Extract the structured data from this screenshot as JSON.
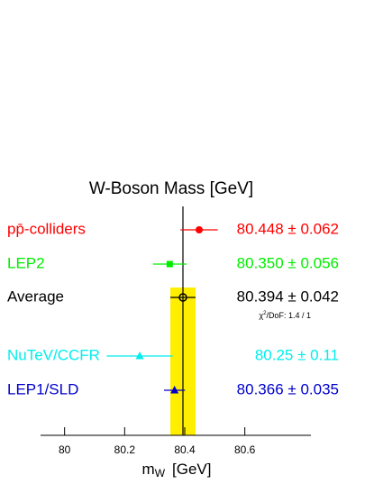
{
  "chart_data": {
    "type": "errorbar",
    "title": "W-Boson Mass  [GeV]",
    "xlabel": {
      "main": "m",
      "sub": "W",
      "unit": "[GeV]"
    },
    "xlim": [
      79.92,
      80.82
    ],
    "xticks": [
      80,
      80.2,
      80.4,
      80.6
    ],
    "band_color": "#ffee00",
    "average_index": 2,
    "series": [
      {
        "name": "pp̄-colliders",
        "color": "#ff0000",
        "marker": "circle",
        "value": 80.448,
        "error": 0.062,
        "value_label": "80.448 ± 0.062"
      },
      {
        "name": "LEP2",
        "color": "#00ee00",
        "marker": "square",
        "value": 80.35,
        "error": 0.056,
        "value_label": "80.350 ± 0.056"
      },
      {
        "name": "Average",
        "color": "#000000",
        "marker": "open-circle",
        "value": 80.394,
        "error": 0.042,
        "value_label": "80.394 ± 0.042"
      },
      {
        "name": "NuTeV/CCFR",
        "color": "#00eeee",
        "marker": "triangle",
        "value": 80.25,
        "error": 0.11,
        "value_label": "80.25 ± 0.11"
      },
      {
        "name": "LEP1/SLD",
        "color": "#0000cc",
        "marker": "triangle",
        "value": 80.366,
        "error": 0.035,
        "value_label": "80.366 ± 0.035"
      }
    ],
    "annotation": {
      "pre": "χ",
      "sup": "2",
      "post": "/DoF: 1.4 / 1"
    }
  }
}
